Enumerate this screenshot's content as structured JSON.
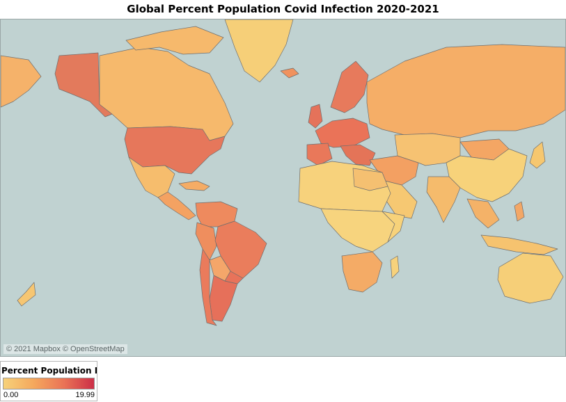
{
  "title": "Global Percent Population Covid Infection 2020-2021",
  "attribution": "© 2021 Mapbox © OpenStreetMap",
  "legend": {
    "title": "Percent Population Infe..",
    "min_label": "0.00",
    "max_label": "19.99"
  },
  "colors": {
    "ocean": "#c0d2d1",
    "low": "#f6d179",
    "mid": "#f5a85d",
    "high": "#ea7356",
    "max": "#cc2f47",
    "border": "#6e6e6e"
  }
}
